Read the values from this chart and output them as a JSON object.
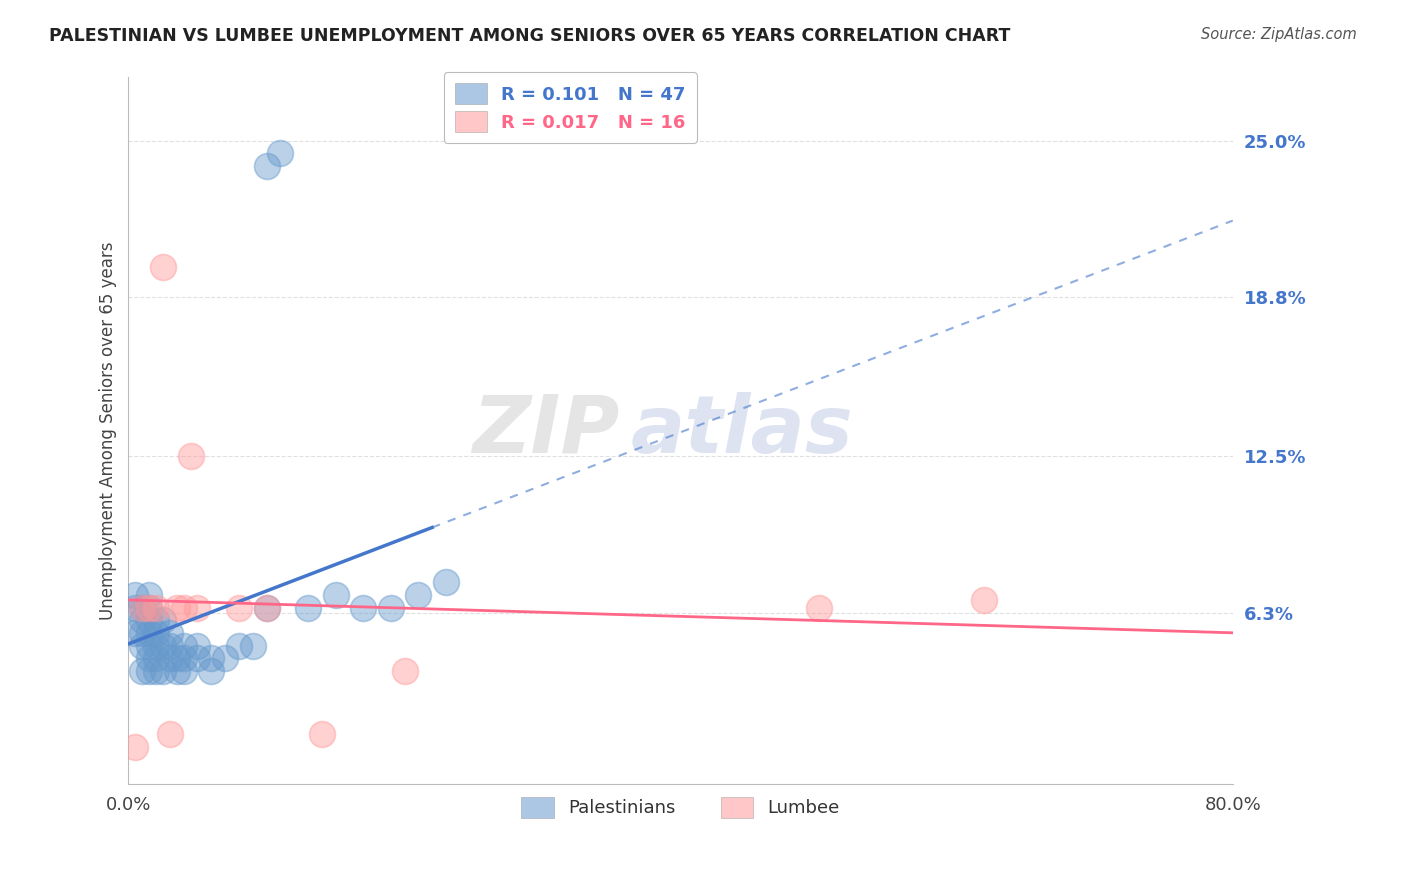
{
  "title": "PALESTINIAN VS LUMBEE UNEMPLOYMENT AMONG SENIORS OVER 65 YEARS CORRELATION CHART",
  "source": "Source: ZipAtlas.com",
  "ylabel": "Unemployment Among Seniors over 65 years",
  "xlim": [
    0.0,
    0.8
  ],
  "ylim": [
    -0.005,
    0.275
  ],
  "yticks": [
    0.063,
    0.125,
    0.188,
    0.25
  ],
  "ytick_labels": [
    "6.3%",
    "12.5%",
    "18.8%",
    "25.0%"
  ],
  "xtick_labels": [
    "0.0%",
    "80.0%"
  ],
  "legend_r1": "R = 0.101",
  "legend_n1": "N = 47",
  "legend_r2": "R = 0.017",
  "legend_n2": "N = 16",
  "palestinians_color": "#6699CC",
  "lumbee_color": "#FF9999",
  "palestinians_x": [
    0.005,
    0.005,
    0.005,
    0.01,
    0.01,
    0.01,
    0.01,
    0.01,
    0.015,
    0.015,
    0.015,
    0.015,
    0.015,
    0.015,
    0.015,
    0.02,
    0.02,
    0.02,
    0.02,
    0.02,
    0.025,
    0.025,
    0.025,
    0.03,
    0.03,
    0.03,
    0.035,
    0.035,
    0.04,
    0.04,
    0.04,
    0.05,
    0.05,
    0.06,
    0.06,
    0.07,
    0.08,
    0.09,
    0.1,
    0.1,
    0.11,
    0.13,
    0.15,
    0.17,
    0.19,
    0.21,
    0.23
  ],
  "palestinians_y": [
    0.055,
    0.065,
    0.07,
    0.04,
    0.05,
    0.055,
    0.06,
    0.065,
    0.04,
    0.045,
    0.05,
    0.055,
    0.06,
    0.065,
    0.07,
    0.04,
    0.045,
    0.05,
    0.055,
    0.06,
    0.04,
    0.05,
    0.06,
    0.045,
    0.05,
    0.055,
    0.04,
    0.045,
    0.04,
    0.045,
    0.05,
    0.045,
    0.05,
    0.04,
    0.045,
    0.045,
    0.05,
    0.05,
    0.065,
    0.24,
    0.245,
    0.065,
    0.07,
    0.065,
    0.065,
    0.07,
    0.075
  ],
  "lumbee_x": [
    0.005,
    0.01,
    0.015,
    0.02,
    0.025,
    0.03,
    0.035,
    0.04,
    0.045,
    0.05,
    0.08,
    0.1,
    0.14,
    0.2,
    0.5,
    0.62
  ],
  "lumbee_y": [
    0.01,
    0.065,
    0.065,
    0.065,
    0.2,
    0.015,
    0.065,
    0.065,
    0.125,
    0.065,
    0.065,
    0.065,
    0.015,
    0.04,
    0.065,
    0.068
  ],
  "watermark_zip": "ZIP",
  "watermark_atlas": "atlas",
  "background_color": "#FFFFFF",
  "grid_color": "#DDDDDD",
  "trend_blue_color": "#4477CC",
  "trend_pink_color": "#FF6688",
  "pal_trend_start_x": 0.0,
  "pal_trend_end_x": 0.22,
  "pal_trend_dash_end_x": 0.8,
  "lum_trend_start_x": 0.0,
  "lum_trend_end_x": 0.8
}
